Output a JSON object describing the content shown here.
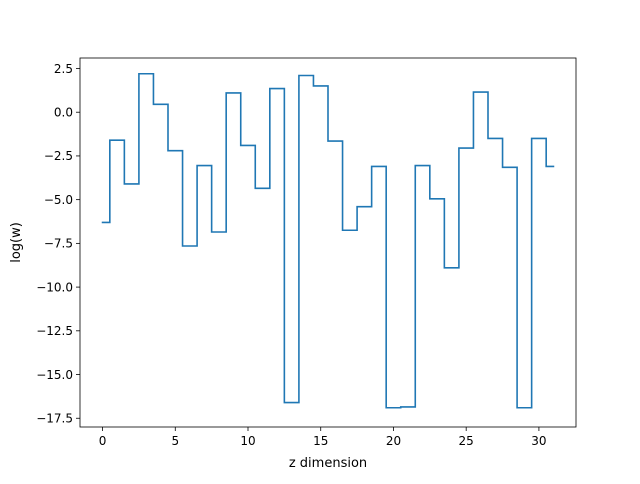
{
  "chart_data": {
    "type": "line",
    "drawstyle": "steps-mid",
    "title": "",
    "xlabel": "z dimension",
    "ylabel": "log(w)",
    "xlim": [
      -1.55,
      32.55
    ],
    "ylim": [
      -18.0,
      3.1
    ],
    "xticks": [
      0,
      5,
      10,
      15,
      20,
      25,
      30
    ],
    "xtick_labels": [
      "0",
      "5",
      "10",
      "15",
      "20",
      "25",
      "30"
    ],
    "yticks": [
      2.5,
      0.0,
      -2.5,
      -5.0,
      -7.5,
      -10.0,
      -12.5,
      -15.0,
      -17.5
    ],
    "ytick_labels": [
      "2.5",
      "0.0",
      "−2.5",
      "−5.0",
      "−7.5",
      "−10.0",
      "−12.5",
      "−15.0",
      "−17.5"
    ],
    "grid": false,
    "legend": "none",
    "series": [
      {
        "color": "#1f77b4",
        "x": [
          0,
          1,
          2,
          3,
          4,
          5,
          6,
          7,
          8,
          9,
          10,
          11,
          12,
          13,
          14,
          15,
          16,
          17,
          18,
          19,
          20,
          21,
          22,
          23,
          24,
          25,
          26,
          27,
          28,
          29,
          30,
          31
        ],
        "values": [
          -6.3,
          -1.6,
          -4.1,
          2.2,
          0.45,
          -2.2,
          -7.65,
          -3.05,
          -6.85,
          1.1,
          -1.9,
          -4.35,
          1.35,
          -16.6,
          2.1,
          1.5,
          -1.65,
          -6.75,
          -5.4,
          -3.1,
          -16.9,
          -16.85,
          -3.05,
          -4.95,
          -8.9,
          -2.05,
          1.15,
          -1.5,
          -3.15,
          -16.9,
          -1.5,
          -3.1
        ]
      }
    ]
  }
}
